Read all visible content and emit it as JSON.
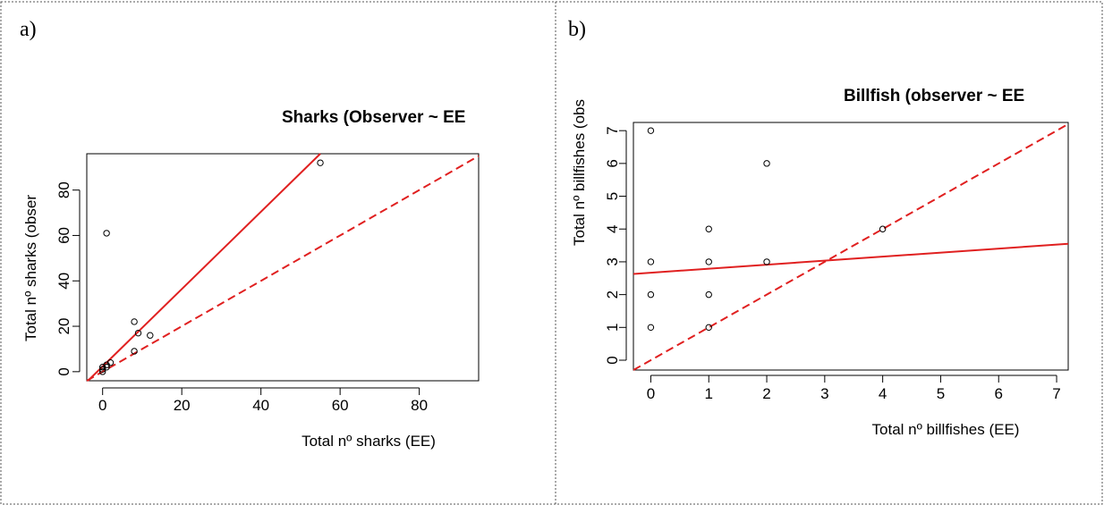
{
  "panels": [
    {
      "letter": "a)",
      "chart_data": {
        "type": "scatter",
        "title": "Sharks (Observer ~ EE",
        "xlabel": "Total nº sharks (EE)",
        "ylabel": "Total nº sharks (obser",
        "xlim": [
          -4,
          95
        ],
        "ylim": [
          -4,
          96
        ],
        "xticks": [
          0,
          20,
          40,
          60,
          80
        ],
        "yticks": [
          0,
          20,
          40,
          60,
          80
        ],
        "points": [
          {
            "x": 55,
            "y": 92
          },
          {
            "x": 1,
            "y": 61
          },
          {
            "x": 8,
            "y": 22
          },
          {
            "x": 9,
            "y": 17
          },
          {
            "x": 12,
            "y": 16
          },
          {
            "x": 8,
            "y": 9
          },
          {
            "x": 2,
            "y": 4
          },
          {
            "x": 1,
            "y": 3
          },
          {
            "x": 0,
            "y": 2
          },
          {
            "x": 0,
            "y": 1
          },
          {
            "x": 1,
            "y": 2
          },
          {
            "x": 0,
            "y": 0
          }
        ],
        "lines": [
          {
            "style": "solid",
            "color": "#e02020",
            "from": [
              -4,
              -4.5
            ],
            "to": [
              55,
              96
            ]
          },
          {
            "style": "dashed",
            "color": "#e02020",
            "from": [
              -4,
              -4
            ],
            "to": [
              95,
              95
            ]
          }
        ],
        "grid": false,
        "legend": "none"
      }
    },
    {
      "letter": "b)",
      "chart_data": {
        "type": "scatter",
        "title": "Billfish (observer ~ EE",
        "xlabel": "Total nº billfishes (EE)",
        "ylabel": "Total nº billfishes (obs",
        "xlim": [
          -0.3,
          7.2
        ],
        "ylim": [
          -0.3,
          7.25
        ],
        "xticks": [
          0,
          1,
          2,
          3,
          4,
          5,
          6,
          7
        ],
        "yticks": [
          0,
          1,
          2,
          3,
          4,
          5,
          6,
          7
        ],
        "points": [
          {
            "x": 0,
            "y": 7
          },
          {
            "x": 2,
            "y": 6
          },
          {
            "x": 1,
            "y": 4
          },
          {
            "x": 4,
            "y": 4
          },
          {
            "x": 0,
            "y": 3
          },
          {
            "x": 1,
            "y": 3
          },
          {
            "x": 2,
            "y": 3
          },
          {
            "x": 0,
            "y": 2
          },
          {
            "x": 1,
            "y": 2
          },
          {
            "x": 0,
            "y": 1
          },
          {
            "x": 1,
            "y": 1
          }
        ],
        "lines": [
          {
            "style": "solid",
            "color": "#e02020",
            "from": [
              -0.3,
              2.63
            ],
            "to": [
              7.2,
              3.55
            ]
          },
          {
            "style": "dashed",
            "color": "#e02020",
            "from": [
              -0.3,
              -0.3
            ],
            "to": [
              7.2,
              7.2
            ]
          }
        ],
        "grid": false,
        "legend": "none"
      }
    }
  ]
}
